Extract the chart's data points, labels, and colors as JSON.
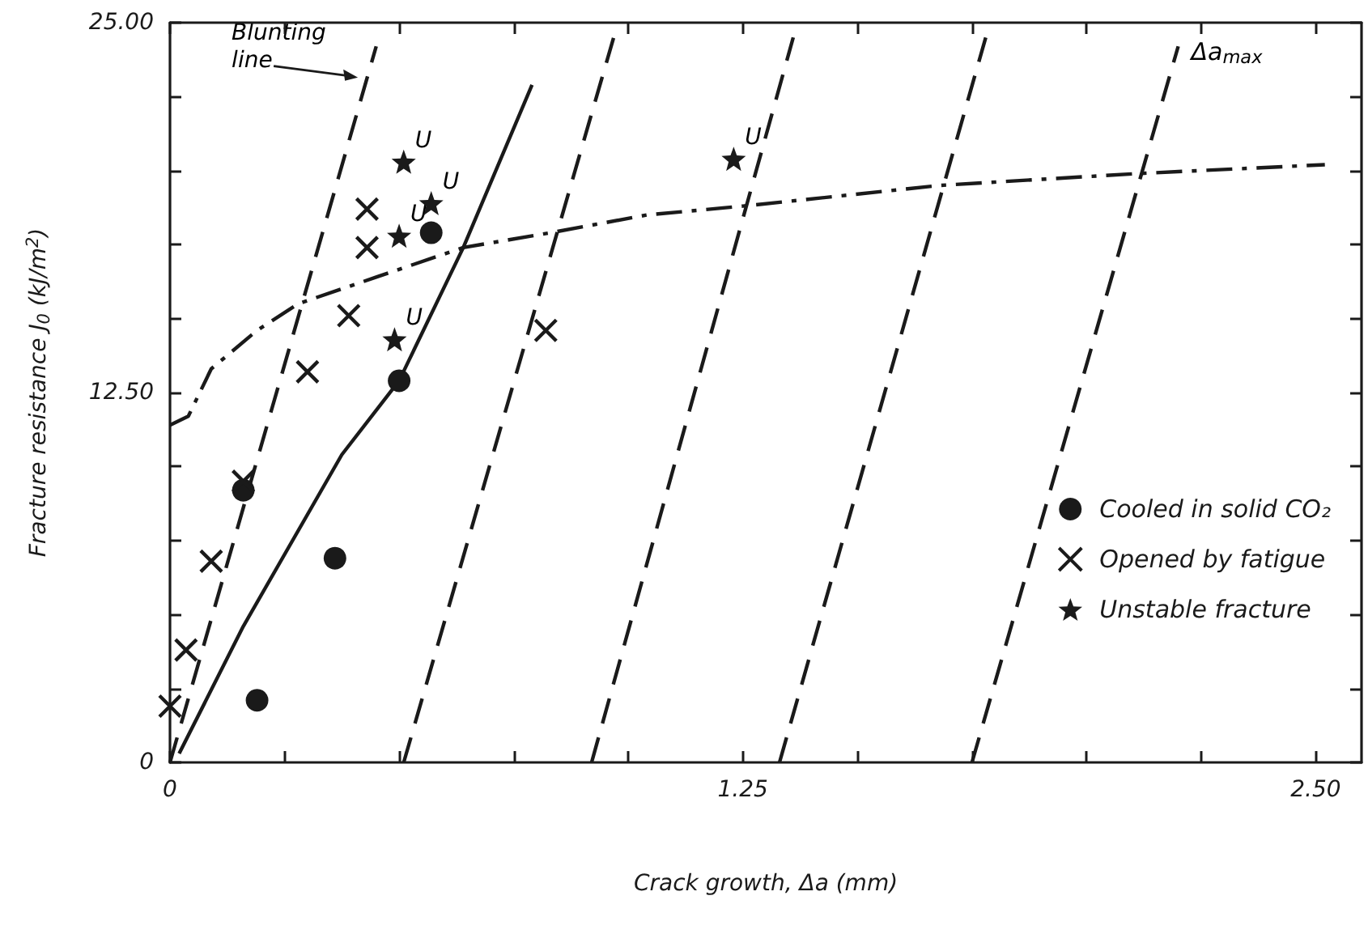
{
  "chart_data": {
    "type": "scatter",
    "xlabel": "Crack growth, Δa (mm)",
    "ylabel": "Fracture resistance J$_{0}$ (kJ/m$^{2}$)",
    "xlim": [
      0,
      2.6
    ],
    "xticks": [
      0,
      {
        "value": 0.25,
        "label": null
      },
      {
        "value": 0.5,
        "label": null
      },
      {
        "value": 0.75,
        "label": null
      },
      {
        "value": 1,
        "label": null
      },
      1.25,
      {
        "value": 1.5,
        "label": null
      },
      {
        "value": 1.75,
        "label": null
      },
      {
        "value": 2,
        "label": null
      },
      {
        "value": 2.25,
        "label": null
      },
      {
        "value": 2.5,
        "label": "2.50"
      }
    ],
    "ylim": [
      0,
      25
    ],
    "yticks": [
      0,
      {
        "value": 2.5,
        "label": null
      },
      {
        "value": 5,
        "label": null
      },
      {
        "value": 7.5,
        "label": null
      },
      {
        "value": 10,
        "label": null
      },
      {
        "value": 12.5,
        "label": "12.50"
      },
      {
        "value": 15,
        "label": null
      },
      {
        "value": 17.5,
        "label": null
      },
      {
        "value": 20,
        "label": null
      },
      {
        "value": 22.5,
        "label": null
      },
      {
        "value": 25,
        "label": "25.00"
      }
    ],
    "grid": false,
    "legend": "right",
    "series": [
      {
        "name": "Cooled in solid CO₂",
        "marker": "circle",
        "color": "#1a1a1a",
        "x": [
          0.16,
          0.19,
          0.36,
          0.5,
          0.57
        ],
        "values": [
          9.2,
          2.1,
          6.9,
          12.9,
          17.9
        ]
      },
      {
        "type": "line",
        "marker": "none",
        "line_style": "solid",
        "color": "#1a1a1a",
        "x": [
          0.02,
          0.16,
          0.375,
          0.5,
          0.64,
          0.79
        ],
        "values": [
          0.3,
          4.6,
          10.4,
          12.9,
          17.4,
          22.9
        ]
      },
      {
        "name": "Opened by fatigue",
        "marker": "cross",
        "color": "#1a1a1a",
        "x": [
          0,
          0.035,
          0.09,
          0.16,
          0.3,
          0.39,
          0.43,
          0.43,
          0.82
        ],
        "values": [
          1.9,
          3.8,
          6.8,
          9.5,
          13.2,
          15.1,
          17.4,
          18.7,
          14.6
        ]
      },
      {
        "type": "line",
        "marker": "none",
        "line_style": "dashdot",
        "color": "#1a1a1a",
        "x": [
          0,
          0.04,
          0.09,
          0.19,
          0.28,
          0.45,
          0.64,
          0.83,
          1.04,
          1.25,
          1.68,
          2.11,
          2.52
        ],
        "values": [
          11.4,
          11.7,
          13.3,
          14.6,
          15.5,
          16.4,
          17.4,
          17.9,
          18.5,
          18.8,
          19.5,
          19.9,
          20.2
        ]
      },
      {
        "name": "Unstable fracture",
        "marker": "star",
        "color": "#1a1a1a",
        "x": [
          0.51,
          0.57,
          0.5,
          0.49,
          1.23
        ],
        "values": [
          20.3,
          18.9,
          17.8,
          14.3,
          20.4
        ]
      },
      {
        "type": "line",
        "marker": "none",
        "line_style": "dashed",
        "color": "#1a1a1a",
        "x": [
          0,
          0.45
        ],
        "values": [
          0,
          24.2
        ]
      },
      {
        "type": "line",
        "marker": "none",
        "line_style": "dashed",
        "color": "#1a1a1a",
        "x": [
          0.51,
          0.97
        ],
        "values": [
          0,
          24.6
        ]
      },
      {
        "type": "line",
        "marker": "none",
        "line_style": "dashed",
        "color": "#1a1a1a",
        "x": [
          0.92,
          1.36
        ],
        "values": [
          0,
          24.5
        ]
      },
      {
        "type": "line",
        "marker": "none",
        "line_style": "dashed",
        "color": "#1a1a1a",
        "x": [
          1.33,
          1.78
        ],
        "values": [
          0,
          24.5
        ]
      },
      {
        "type": "line",
        "marker": "none",
        "line_style": "dashed",
        "color": "#1a1a1a",
        "x": [
          1.75,
          2.2
        ],
        "values": [
          0,
          24.2
        ]
      }
    ],
    "annotations": [
      {
        "text": "Blunting line",
        "x": 0.41,
        "y": 22
      },
      {
        "text": "Δa$_{max}$",
        "x": 2.2,
        "y": 24.2
      },
      {
        "text": "U",
        "x": 0.51,
        "y": 20.3
      },
      {
        "text": "U",
        "x": 0.57,
        "y": 18.9
      },
      {
        "text": "U",
        "x": 0.5,
        "y": 17.8
      },
      {
        "text": "U",
        "x": 0.49,
        "y": 14.3
      },
      {
        "text": "U",
        "x": 1.23,
        "y": 20.4
      }
    ]
  }
}
